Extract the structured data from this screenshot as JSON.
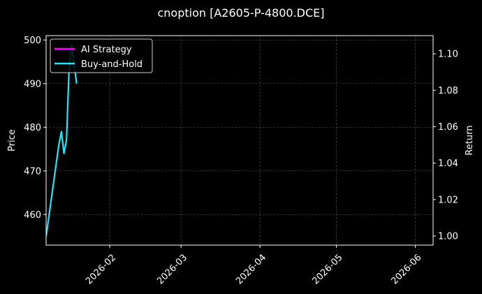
{
  "chart_data": {
    "type": "line",
    "title": "cnoption [A2605-P-4800.DCE]",
    "xlabel": "",
    "ylabel": "Price",
    "y2label": "Return",
    "x_ticks": [
      "2026-02",
      "2026-03",
      "2026-04",
      "2026-05",
      "2026-06"
    ],
    "x_tick_dates": [
      "2026-02-01",
      "2026-03-01",
      "2026-04-01",
      "2026-05-01",
      "2026-06-01"
    ],
    "xlim": [
      "2026-01-07",
      "2026-06-08"
    ],
    "y_ticks": [
      460,
      470,
      480,
      490,
      500
    ],
    "ylim": [
      453,
      501
    ],
    "y2_ticks": [
      "1.00",
      "1.02",
      "1.04",
      "1.06",
      "1.08",
      "1.10"
    ],
    "y2lim": [
      0.995,
      1.11
    ],
    "grid": true,
    "legend_position": "top-left",
    "series": [
      {
        "name": "AI Strategy",
        "color": "#ff00ff",
        "axis": "right",
        "points": []
      },
      {
        "name": "Buy-and-Hold",
        "color": "#22e5f5",
        "axis": "left",
        "points": [
          {
            "x": "2026-01-07",
            "y": 455
          },
          {
            "x": "2026-01-12",
            "y": 476
          },
          {
            "x": "2026-01-13",
            "y": 479
          },
          {
            "x": "2026-01-14",
            "y": 474
          },
          {
            "x": "2026-01-15",
            "y": 477
          },
          {
            "x": "2026-01-16",
            "y": 493
          },
          {
            "x": "2026-01-17",
            "y": 499
          },
          {
            "x": "2026-01-19",
            "y": 490
          }
        ]
      }
    ]
  }
}
